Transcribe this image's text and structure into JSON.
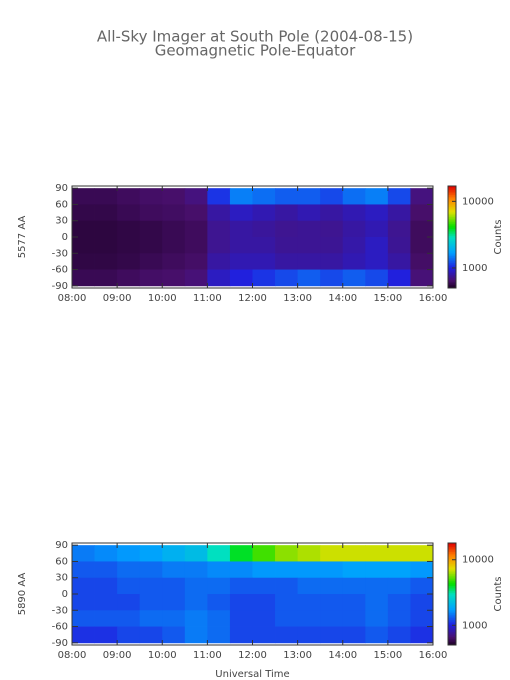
{
  "chart_data": [
    {
      "type": "heatmap",
      "title": "All-Sky Imager at South Pole (2004-08-15)",
      "subtitle": "Geomagnetic Pole-Equator",
      "y_label": "5577 AA",
      "colorbar_label": "Counts",
      "colormap": "rainbow",
      "log_color": true,
      "xlim": [
        8,
        16
      ],
      "xticks": [
        {
          "value": 8,
          "label": "08:00"
        },
        {
          "value": 9,
          "label": "09:00"
        },
        {
          "value": 10,
          "label": "10:00"
        },
        {
          "value": 11,
          "label": "11:00"
        },
        {
          "value": 12,
          "label": "12:00"
        },
        {
          "value": 13,
          "label": "13:00"
        },
        {
          "value": 14,
          "label": "14:00"
        },
        {
          "value": 15,
          "label": "15:00"
        },
        {
          "value": 16,
          "label": "16:00"
        }
      ],
      "ylim": [
        -94,
        94
      ],
      "yticks": [
        90,
        60,
        30,
        0,
        -30,
        -60,
        -90
      ],
      "clim": [
        500,
        17000
      ],
      "cticks": [
        1000,
        10000
      ],
      "x": [
        8,
        8.5,
        9,
        9.5,
        10,
        10.5,
        11,
        11.5,
        12,
        12.5,
        13,
        13.5,
        14,
        14.5,
        15,
        15.5
      ],
      "y": [
        75,
        45,
        15,
        -15,
        -45,
        -75
      ],
      "z": [
        [
          600,
          600,
          620,
          640,
          650,
          700,
          1100,
          1500,
          1400,
          1300,
          1300,
          1200,
          1400,
          1500,
          1200,
          700
        ],
        [
          580,
          580,
          600,
          620,
          630,
          650,
          800,
          900,
          850,
          800,
          850,
          800,
          850,
          900,
          800,
          650
        ],
        [
          560,
          560,
          570,
          580,
          600,
          620,
          750,
          800,
          780,
          750,
          760,
          750,
          800,
          850,
          750,
          620
        ],
        [
          560,
          560,
          570,
          580,
          600,
          620,
          750,
          800,
          800,
          760,
          760,
          760,
          820,
          900,
          760,
          620
        ],
        [
          570,
          570,
          580,
          600,
          620,
          640,
          800,
          850,
          850,
          800,
          800,
          800,
          850,
          900,
          800,
          640
        ],
        [
          600,
          600,
          620,
          640,
          650,
          680,
          900,
          1000,
          1100,
          1200,
          1300,
          1200,
          1300,
          1200,
          1000,
          680
        ]
      ]
    },
    {
      "type": "heatmap",
      "y_label": "5890 AA",
      "x_label": "Universal Time",
      "colorbar_label": "Counts",
      "colormap": "rainbow",
      "log_color": true,
      "xlim": [
        8,
        16
      ],
      "xticks": [
        {
          "value": 8,
          "label": "08:00"
        },
        {
          "value": 9,
          "label": "09:00"
        },
        {
          "value": 10,
          "label": "10:00"
        },
        {
          "value": 11,
          "label": "11:00"
        },
        {
          "value": 12,
          "label": "12:00"
        },
        {
          "value": 13,
          "label": "13:00"
        },
        {
          "value": 14,
          "label": "14:00"
        },
        {
          "value": 15,
          "label": "15:00"
        },
        {
          "value": 16,
          "label": "16:00"
        }
      ],
      "ylim": [
        -94,
        94
      ],
      "yticks": [
        90,
        60,
        30,
        0,
        -30,
        -60,
        -90
      ],
      "clim": [
        500,
        18000
      ],
      "cticks": [
        1000,
        10000
      ],
      "x": [
        8,
        8.5,
        9,
        9.5,
        10,
        10.5,
        11,
        11.5,
        12,
        12.5,
        13,
        13.5,
        14,
        14.5,
        15,
        15.5
      ],
      "y": [
        75,
        45,
        15,
        -15,
        -45,
        -75
      ],
      "z": [
        [
          1500,
          1600,
          1700,
          1800,
          2000,
          2200,
          3000,
          4000,
          5000,
          6000,
          6500,
          7000,
          7000,
          7000,
          7000,
          7000
        ],
        [
          1300,
          1300,
          1400,
          1400,
          1500,
          1500,
          1600,
          1600,
          1700,
          1700,
          1700,
          1700,
          1800,
          1800,
          1800,
          1700
        ],
        [
          1200,
          1200,
          1300,
          1300,
          1300,
          1400,
          1400,
          1300,
          1300,
          1300,
          1400,
          1400,
          1400,
          1400,
          1400,
          1300
        ],
        [
          1200,
          1200,
          1200,
          1300,
          1300,
          1400,
          1300,
          1200,
          1200,
          1300,
          1300,
          1300,
          1300,
          1400,
          1300,
          1200
        ],
        [
          1300,
          1300,
          1300,
          1400,
          1400,
          1500,
          1400,
          1200,
          1200,
          1300,
          1300,
          1300,
          1300,
          1400,
          1300,
          1200
        ],
        [
          1100,
          1100,
          1200,
          1200,
          1300,
          1500,
          1400,
          1200,
          1200,
          1200,
          1200,
          1200,
          1200,
          1300,
          1200,
          1100
        ]
      ]
    }
  ]
}
